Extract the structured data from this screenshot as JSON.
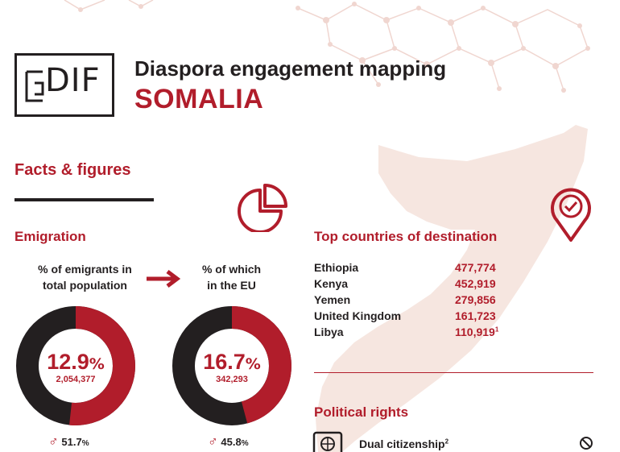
{
  "header": {
    "logo_text": "DIF",
    "title": "Diaspora engagement mapping",
    "country": "SOMALIA"
  },
  "facts": {
    "section_title": "Facts & figures"
  },
  "emigration": {
    "heading": "Emigration",
    "left_label_line1": "% of emigrants in",
    "left_label_line2": "total population",
    "right_label_line1": "% of which",
    "right_label_line2": "in the EU",
    "left_donut": {
      "percent": "12.9",
      "percent_sign": "%",
      "count": "2,054,377",
      "male_share": "51.7",
      "male_sign": "%",
      "fraction": 0.517
    },
    "right_donut": {
      "percent": "16.7",
      "percent_sign": "%",
      "count": "342,293",
      "male_share": "45.8",
      "male_sign": "%",
      "fraction": 0.458
    }
  },
  "destinations": {
    "heading": "Top countries of destination",
    "rows": [
      {
        "country": "Ethiopia",
        "value": "477,774",
        "note": ""
      },
      {
        "country": "Kenya",
        "value": "452,919",
        "note": ""
      },
      {
        "country": "Yemen",
        "value": "279,856",
        "note": ""
      },
      {
        "country": "United Kingdom",
        "value": "161,723",
        "note": ""
      },
      {
        "country": "Libya",
        "value": "110,919",
        "note": "1"
      }
    ]
  },
  "political_rights": {
    "heading": "Political rights",
    "dual_citizenship_label": "Dual citizenship",
    "dual_citizenship_note": "2"
  },
  "icons": {
    "pie": "pie-chart-icon",
    "arrow": "arrow-right-icon",
    "location": "location-pin-check-icon",
    "passport": "passport-icon",
    "prohibited": "prohibited-icon",
    "male": "male-symbol-icon"
  },
  "colors": {
    "accent": "#b11d2b",
    "dark": "#231f20",
    "map": "#f6e6e0"
  }
}
